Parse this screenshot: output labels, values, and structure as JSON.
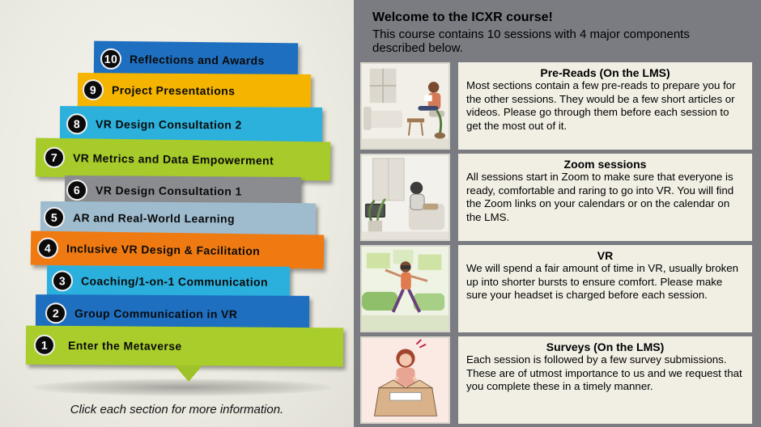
{
  "sessions": [
    {
      "num": "1",
      "label": "Enter the Metaverse",
      "color": "#a9ce2b"
    },
    {
      "num": "2",
      "label": "Group Communication in VR",
      "color": "#1f6fc0"
    },
    {
      "num": "3",
      "label": "Coaching/1-on-1 Communication",
      "color": "#2bb0de"
    },
    {
      "num": "4",
      "label": "Inclusive VR Design & Facilitation",
      "color": "#f07a12"
    },
    {
      "num": "5",
      "label": "AR and Real-World Learning",
      "color": "#9fbccf"
    },
    {
      "num": "6",
      "label": "VR Design Consultation 1",
      "color": "#8a8c90"
    },
    {
      "num": "7",
      "label": "VR Metrics and Data Empowerment",
      "color": "#a6cb2a"
    },
    {
      "num": "8",
      "label": "VR Design Consultation 2",
      "color": "#2cb1dd"
    },
    {
      "num": "9",
      "label": "Project Presentations",
      "color": "#f4b400"
    },
    {
      "num": "10",
      "label": "Reflections and Awards",
      "color": "#1f6fc0"
    }
  ],
  "hint": "Click each section for more information.",
  "welcome": {
    "title": "Welcome to the ICXR course!",
    "intro": "This course contains 10 sessions with 4 major components described below."
  },
  "components": [
    {
      "title": "Pre-Reads (On the LMS)",
      "text": "Most sections contain a few pre-reads to prepare you for the other sessions. They would be a few short articles or videos. Please go through them before each session to get the most out of it.",
      "icon": "reading-illustration-icon"
    },
    {
      "title": "Zoom sessions",
      "text": "All sessions start in Zoom to make sure that everyone is ready, comfortable and raring to go into VR. You will find the Zoom links on your calendars or on the calendar on the LMS.",
      "icon": "laptop-illustration-icon"
    },
    {
      "title": "VR",
      "text": "We will spend a fair amount of time in VR, usually broken up into shorter bursts to ensure comfort. Please make sure your headset is charged before each session.",
      "icon": "vr-headset-illustration-icon"
    },
    {
      "title": "Surveys (On the LMS)",
      "text": "Each session is followed by a few survey submissions. These are of utmost importance to us and we request that you complete these in a timely manner.",
      "icon": "survey-box-illustration-icon"
    }
  ]
}
